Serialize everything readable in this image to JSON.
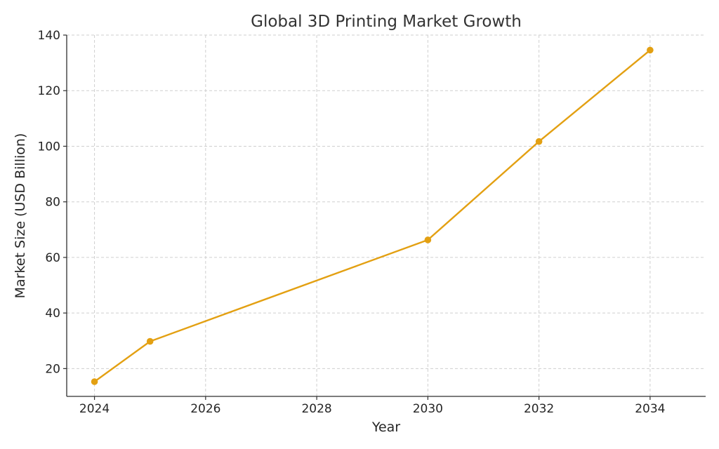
{
  "colors": {
    "series": "#E3A012",
    "axis": "#2f2f2f",
    "grid": "#cfcfcf"
  },
  "chart_data": {
    "type": "line",
    "title": "Global 3D Printing Market Growth",
    "xlabel": "Year",
    "ylabel": "Market Size (USD Billion)",
    "xlim": [
      2023.5,
      2035.0
    ],
    "ylim": [
      10,
      140
    ],
    "xticks": [
      2024,
      2026,
      2028,
      2030,
      2032,
      2034
    ],
    "yticks": [
      20,
      40,
      60,
      80,
      100,
      120,
      140
    ],
    "grid": true,
    "legend": "none",
    "series": [
      {
        "x": [
          2024,
          2025,
          2030,
          2032,
          2034
        ],
        "y": [
          15.3,
          29.8,
          66.3,
          101.7,
          134.6
        ],
        "color": "#E3A012",
        "marker": "circle"
      }
    ]
  }
}
